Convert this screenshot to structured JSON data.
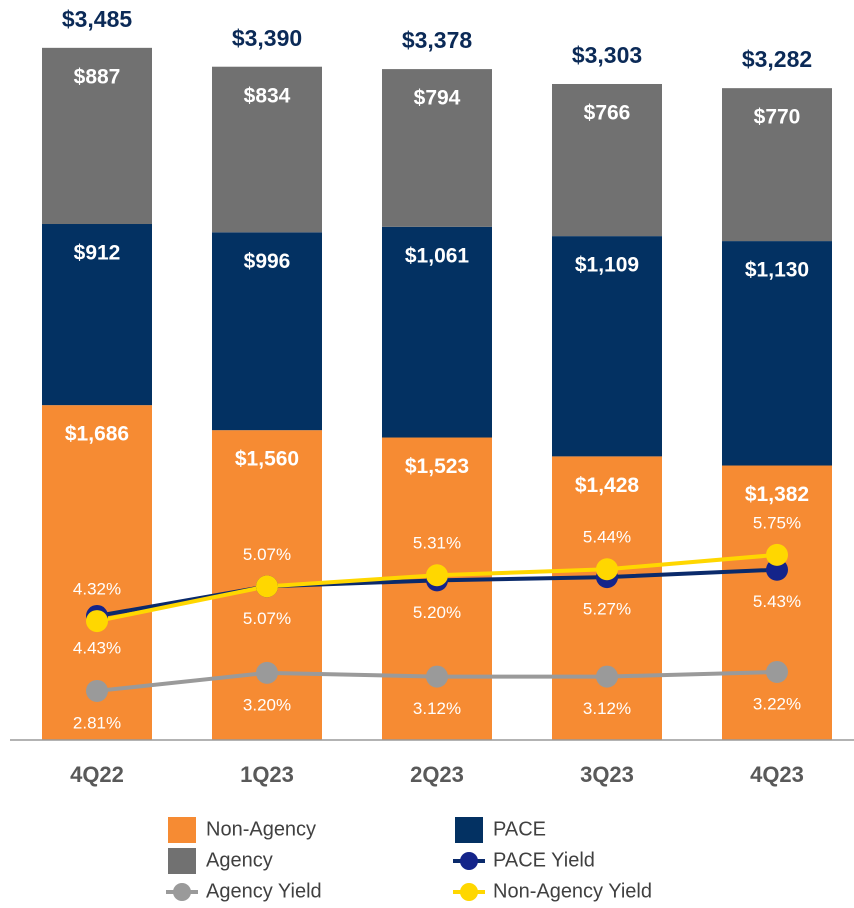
{
  "chart_data": {
    "type": "bar",
    "categories": [
      "4Q22",
      "1Q23",
      "2Q23",
      "3Q23",
      "4Q23"
    ],
    "ylim": [
      0,
      3600
    ],
    "y2lim": [
      1.75,
      17.2
    ],
    "totals": [
      3485,
      3390,
      3378,
      3303,
      3282
    ],
    "total_labels": [
      "$3,485",
      "$3,390",
      "$3,378",
      "$3,303",
      "$3,282"
    ],
    "series": [
      {
        "name": "Non-Agency",
        "type": "bar",
        "color": "#f68b33",
        "values": [
          1686,
          1560,
          1523,
          1428,
          1382
        ],
        "value_labels": [
          "$1,686",
          "$1,560",
          "$1,523",
          "$1,428",
          "$1,382"
        ]
      },
      {
        "name": "PACE",
        "type": "bar",
        "color": "#033162",
        "values": [
          912,
          996,
          1061,
          1109,
          1130
        ],
        "value_labels": [
          "$912",
          "$996",
          "$1,061",
          "$1,109",
          "$1,130"
        ]
      },
      {
        "name": "Agency",
        "type": "bar",
        "color": "#717171",
        "values": [
          887,
          834,
          794,
          766,
          770
        ],
        "value_labels": [
          "$887",
          "$834",
          "$794",
          "$766",
          "$770"
        ]
      },
      {
        "name": "PACE Yield",
        "type": "line",
        "axis": "y2",
        "color": "#0a2a6b",
        "marker_color": "#14248a",
        "label_position": "below",
        "values": [
          4.43,
          5.07,
          5.2,
          5.27,
          5.43
        ],
        "value_labels": [
          "4.43%",
          "5.07%",
          "5.20%",
          "5.27%",
          "5.43%"
        ]
      },
      {
        "name": "Agency Yield",
        "type": "line",
        "axis": "y2",
        "color": "#9a9a9a",
        "marker_color": "#9a9a9a",
        "label_position": "below",
        "values": [
          2.81,
          3.2,
          3.12,
          3.12,
          3.22
        ],
        "value_labels": [
          "2.81%",
          "3.20%",
          "3.12%",
          "3.12%",
          "3.22%"
        ]
      },
      {
        "name": "Non-Agency Yield",
        "type": "line",
        "axis": "y2",
        "color": "#ffd700",
        "marker_color": "#ffd700",
        "label_position": "above",
        "values": [
          4.32,
          5.07,
          5.31,
          5.44,
          5.75
        ],
        "value_labels": [
          "4.32%",
          "5.07%",
          "5.31%",
          "5.44%",
          "5.75%"
        ]
      }
    ]
  }
}
